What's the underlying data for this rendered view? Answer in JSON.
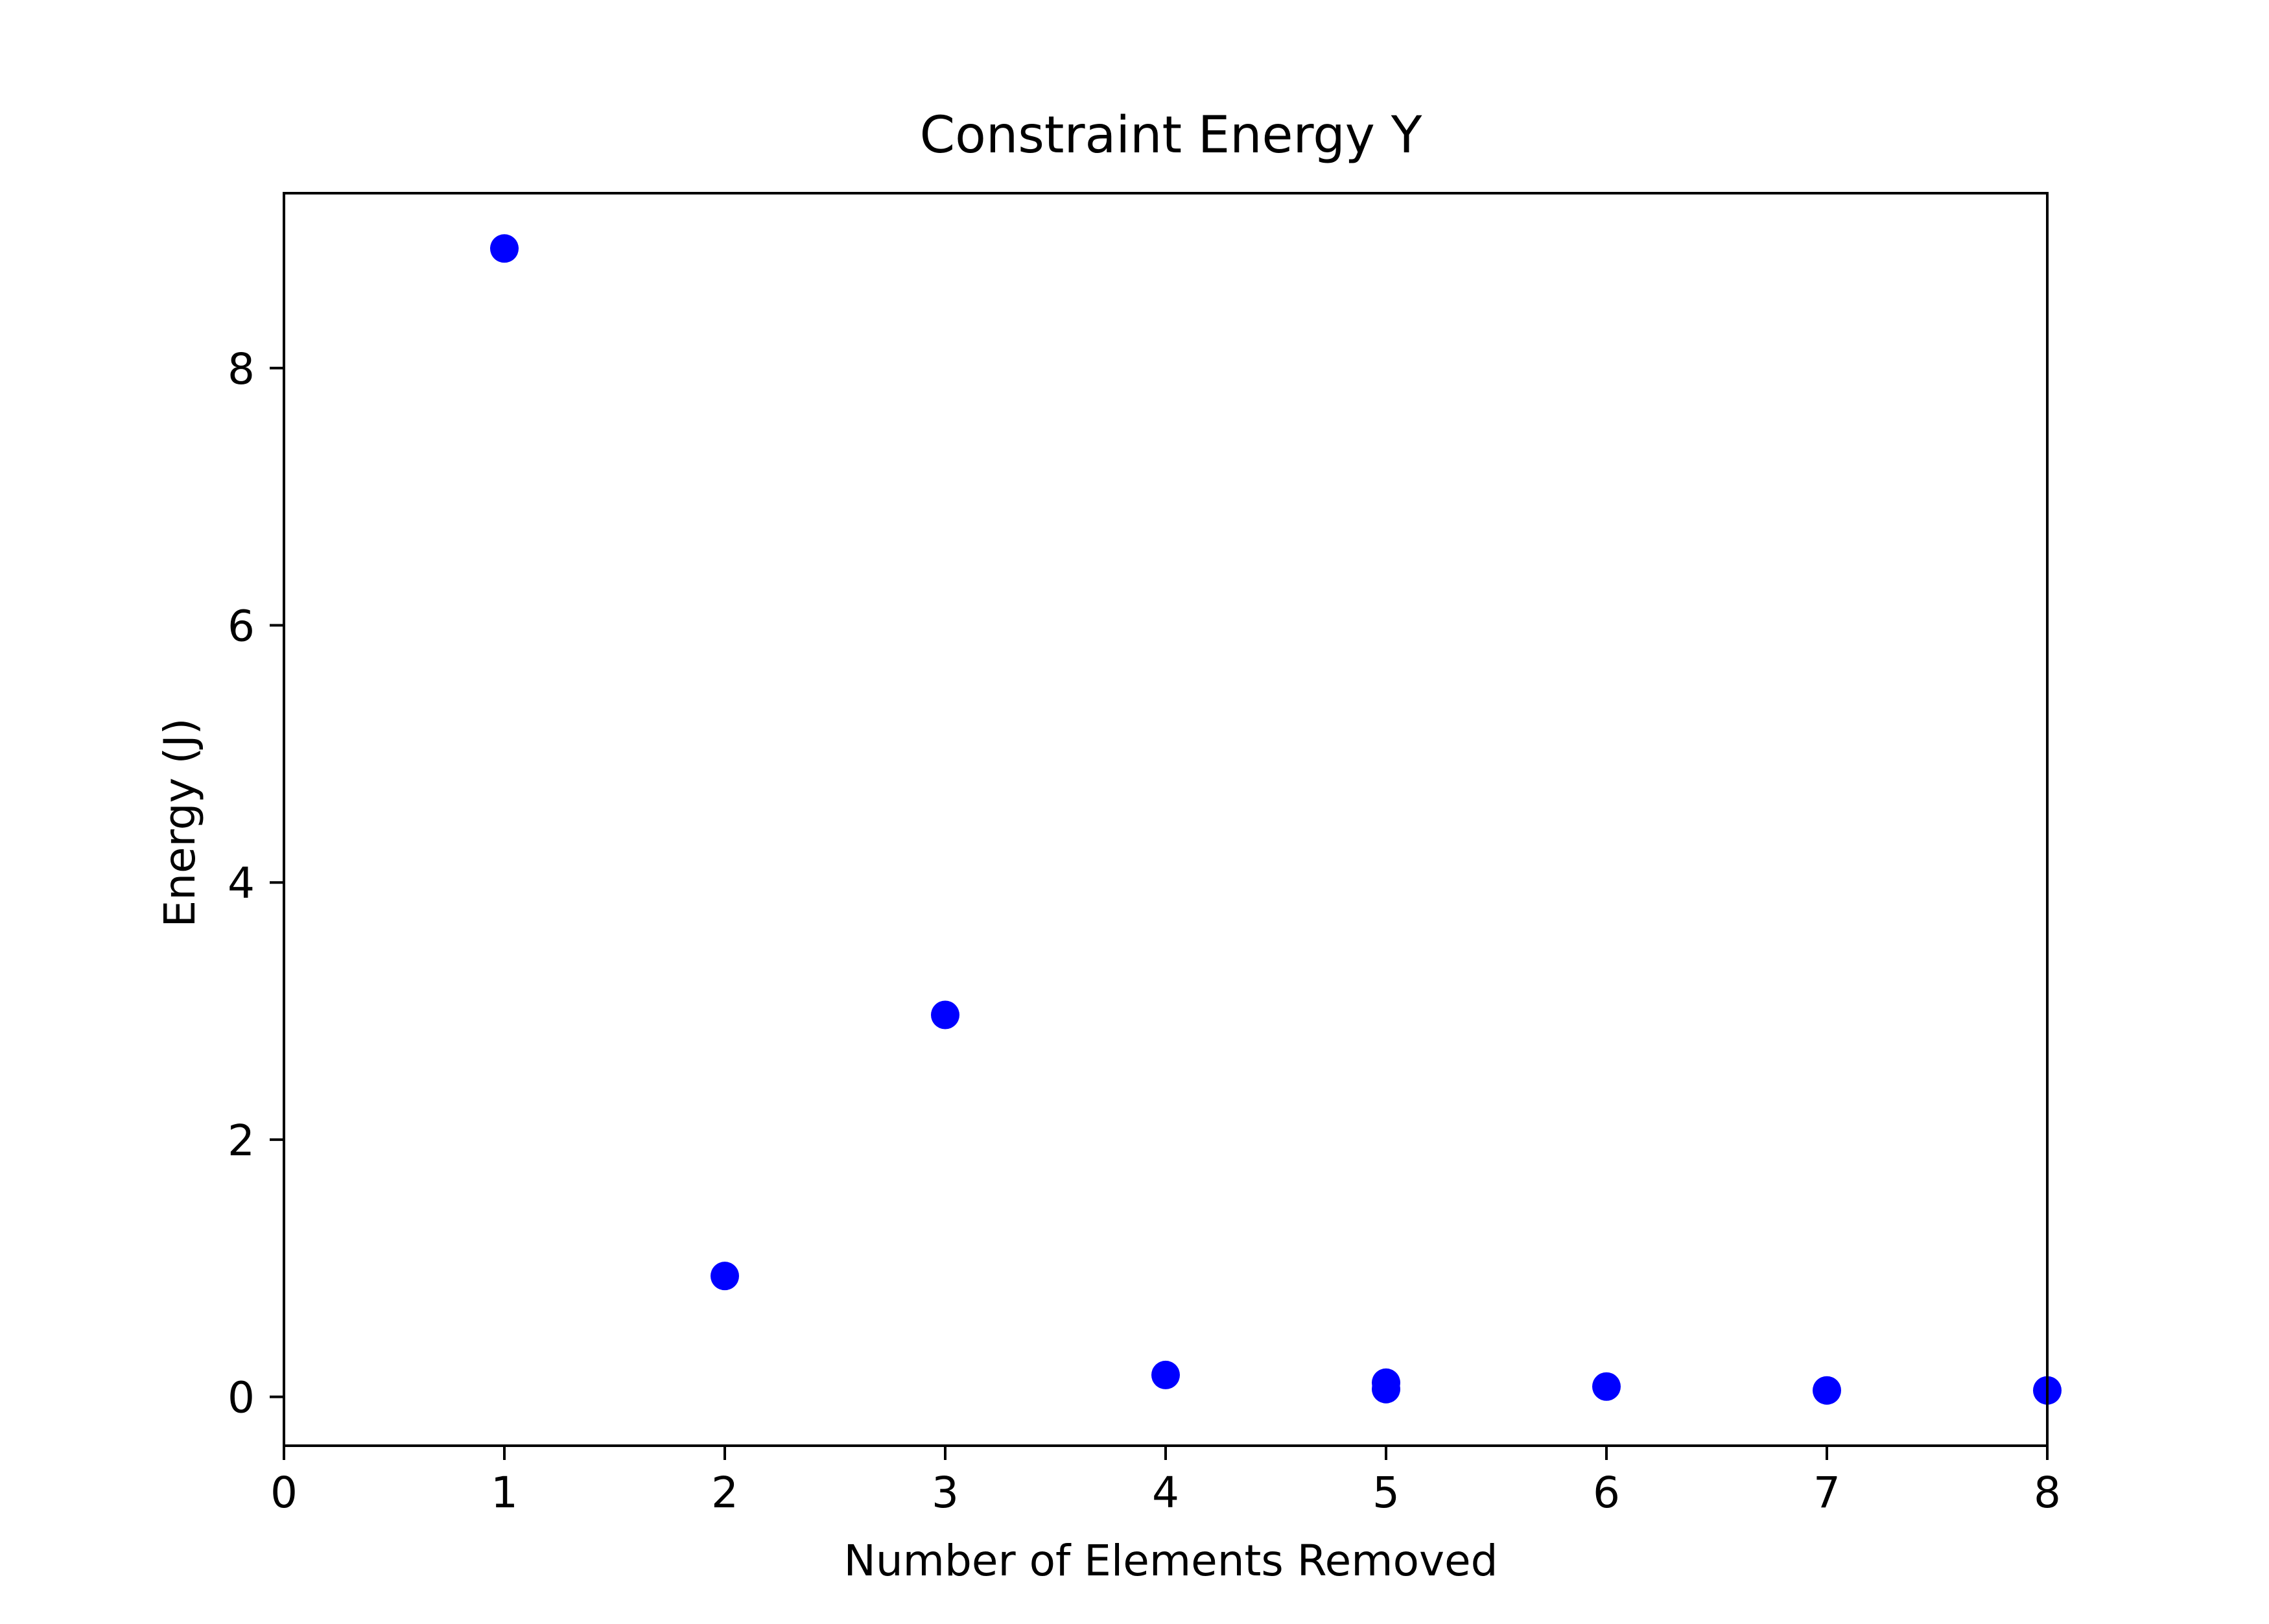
{
  "chart_data": {
    "type": "scatter",
    "title": "Constraint Energy Y",
    "xlabel": "Number of Elements Removed",
    "ylabel": "Energy (J)",
    "xlim": [
      0,
      8
    ],
    "ylim": [
      -0.38,
      9.36
    ],
    "x_ticks": [
      0,
      1,
      2,
      3,
      4,
      5,
      6,
      7,
      8
    ],
    "y_ticks": [
      0,
      2,
      4,
      6,
      8
    ],
    "grid": false,
    "marker_color": "#0000ff",
    "series": [
      {
        "x": [
          1,
          2,
          3,
          4,
          5,
          5,
          6,
          7,
          8
        ],
        "y": [
          8.93,
          0.94,
          2.97,
          0.17,
          0.11,
          0.06,
          0.08,
          0.05,
          0.05
        ]
      }
    ]
  }
}
